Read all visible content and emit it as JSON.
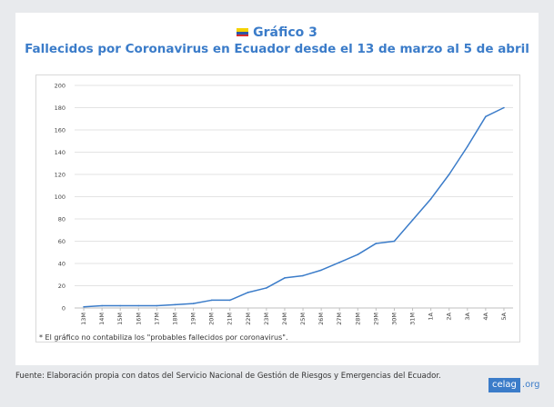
{
  "header": {
    "title": "Gráfico 3",
    "subtitle": "Fallecidos por Coronavirus en Ecuador desde el 13 de marzo al 5 de abril",
    "flag_colors": [
      "#f5d200",
      "#2f57a7",
      "#d62c2c"
    ]
  },
  "chart_data": {
    "type": "line",
    "title": "Fallecidos por Coronavirus en Ecuador desde el 13 de marzo al 5 de abril",
    "xlabel": "",
    "ylabel": "",
    "ylim": [
      0,
      200
    ],
    "yticks": [
      0,
      20,
      40,
      60,
      80,
      100,
      120,
      140,
      160,
      180,
      200
    ],
    "grid": true,
    "line_color": "#3b7cc9",
    "categories": [
      "13M",
      "14M",
      "15M",
      "16M",
      "17M",
      "18M",
      "19M",
      "20M",
      "21M",
      "22M",
      "23M",
      "24M",
      "25M",
      "26M",
      "27M",
      "28M",
      "29M",
      "30M",
      "31M",
      "1A",
      "2A",
      "3A",
      "4A",
      "5A"
    ],
    "series": [
      {
        "name": "Fallecidos",
        "values": [
          1,
          2,
          2,
          2,
          2,
          3,
          4,
          7,
          7,
          14,
          18,
          27,
          29,
          34,
          41,
          48,
          58,
          60,
          79,
          98,
          120,
          145,
          172,
          180
        ]
      }
    ]
  },
  "note": "* El gráfico no contabiliza los \"probables fallecidos por coronavirus\".",
  "source": "Fuente: Elaboración propia con datos del Servicio Nacional de Gestión de Riesgos y Emergencias del Ecuador.",
  "logo": {
    "part1": "celag",
    "part2": ".org"
  }
}
